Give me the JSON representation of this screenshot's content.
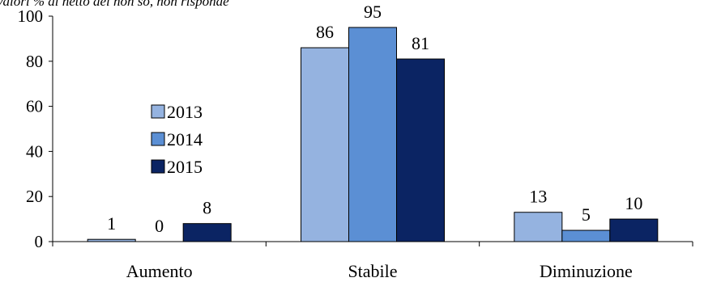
{
  "chart_data": {
    "type": "bar",
    "subtitle": "valori % al netto dei non so, non risponde",
    "categories": [
      "Aumento",
      "Stabile",
      "Diminuzione"
    ],
    "series": [
      {
        "name": "2013",
        "values": [
          1,
          86,
          13
        ],
        "color": "#95b3e0"
      },
      {
        "name": "2014",
        "values": [
          0,
          95,
          5
        ],
        "color": "#5b8fd4"
      },
      {
        "name": "2015",
        "values": [
          8,
          81,
          10
        ],
        "color": "#0b2463"
      }
    ],
    "ylim": [
      0,
      100
    ],
    "yticks": [
      0,
      20,
      40,
      60,
      80,
      100
    ],
    "grid": false,
    "legend_position": "left"
  }
}
